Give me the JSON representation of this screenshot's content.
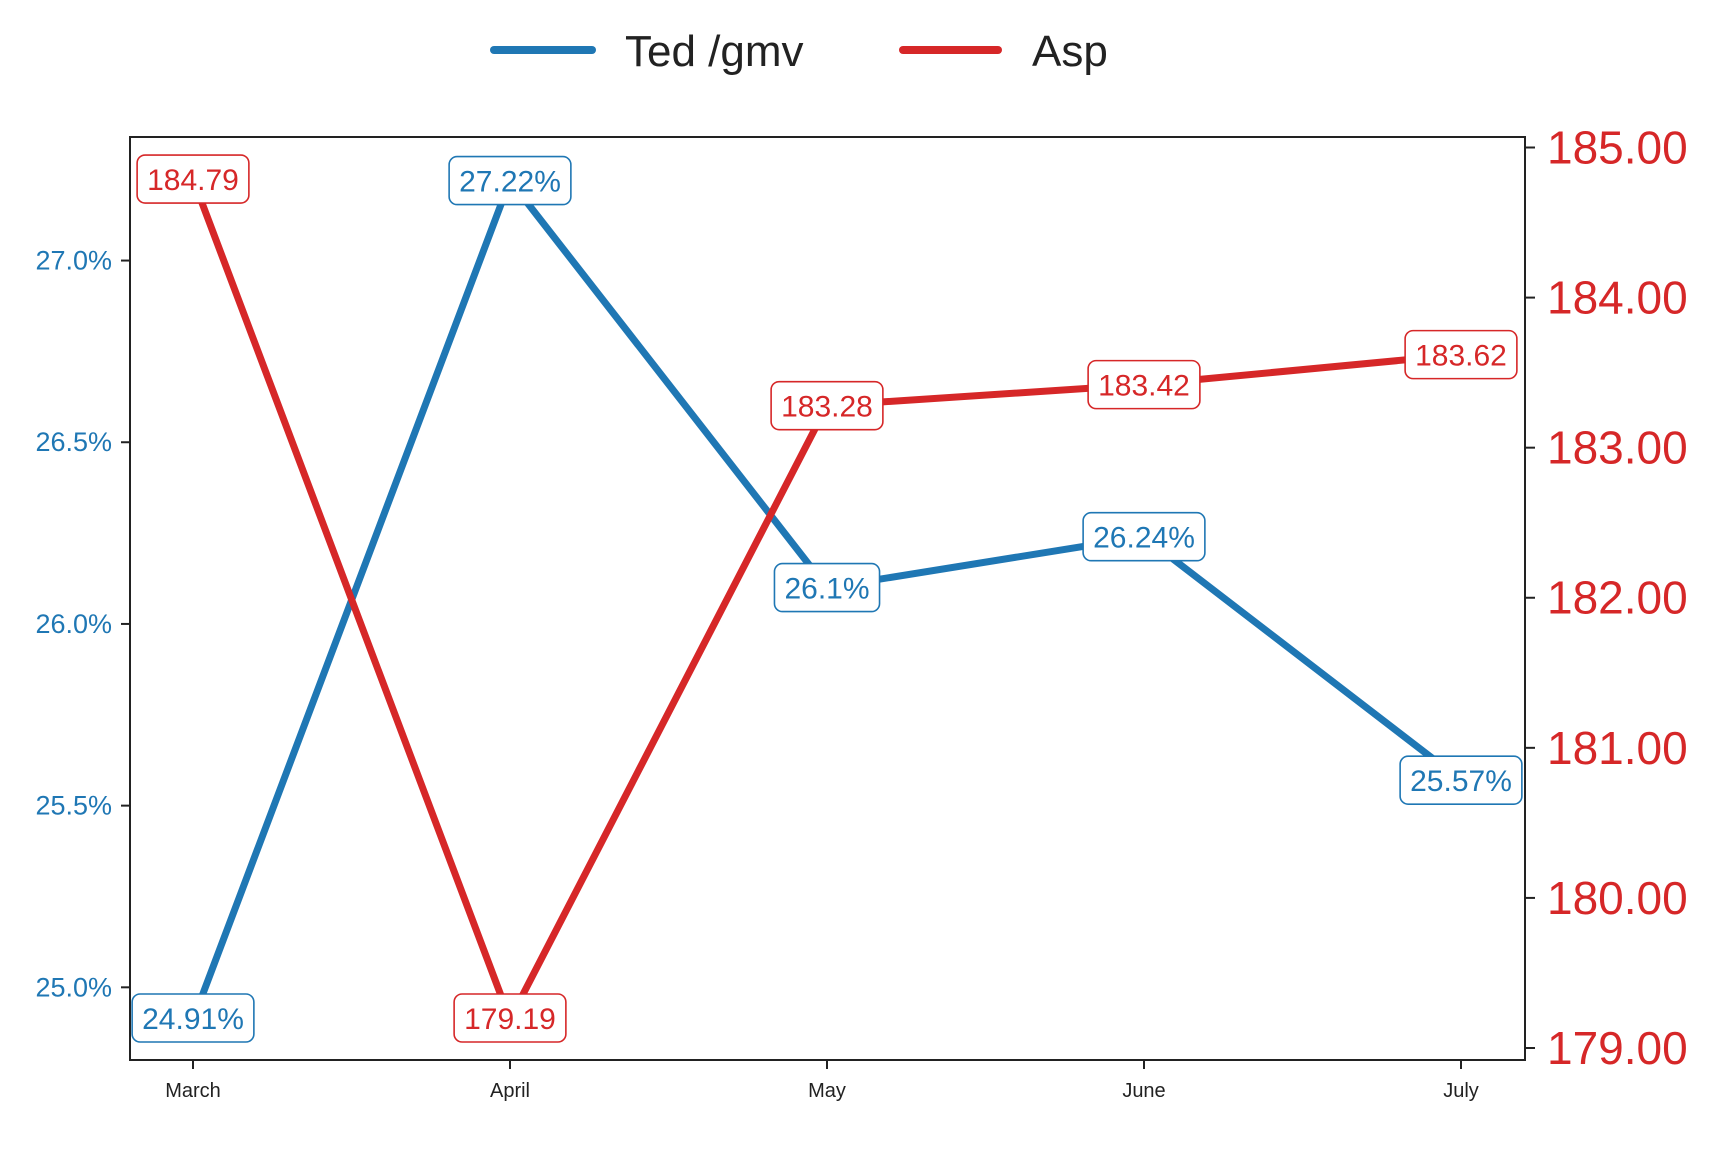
{
  "chart_data": {
    "type": "line",
    "title": "",
    "xlabel": "",
    "categories": [
      "March",
      "April",
      "May",
      "June",
      "July"
    ],
    "legend": {
      "placement": "top-center",
      "entries": [
        "Ted /gmv",
        "Asp"
      ]
    },
    "grid": false,
    "series": [
      {
        "name": "Ted /gmv",
        "axis": "left",
        "color": "#1f77b4",
        "values": [
          24.91,
          27.22,
          26.1,
          26.24,
          25.57
        ],
        "data_labels": [
          "24.91%",
          "27.22%",
          "26.1%",
          "26.24%",
          "25.57%"
        ]
      },
      {
        "name": "Asp",
        "axis": "right",
        "color": "#d62728",
        "values": [
          184.79,
          179.19,
          183.28,
          183.42,
          183.62
        ],
        "data_labels": [
          "184.79",
          "179.19",
          "183.28",
          "183.42",
          "183.62"
        ]
      }
    ],
    "y_left": {
      "ylabel": "",
      "ylim": [
        24.8,
        27.34
      ],
      "ticks": [
        25.0,
        25.5,
        26.0,
        26.5,
        27.0
      ],
      "tick_labels": [
        "25.0%",
        "25.5%",
        "26.0%",
        "26.5%",
        "27.0%"
      ],
      "color": "#1f77b4"
    },
    "y_right": {
      "ylabel": "",
      "ylim": [
        178.92,
        185.07
      ],
      "ticks": [
        179,
        180,
        181,
        182,
        183,
        184,
        185
      ],
      "tick_labels": [
        "179.00",
        "180.00",
        "181.00",
        "182.00",
        "183.00",
        "184.00",
        "185.00"
      ],
      "color": "#d62728"
    }
  }
}
